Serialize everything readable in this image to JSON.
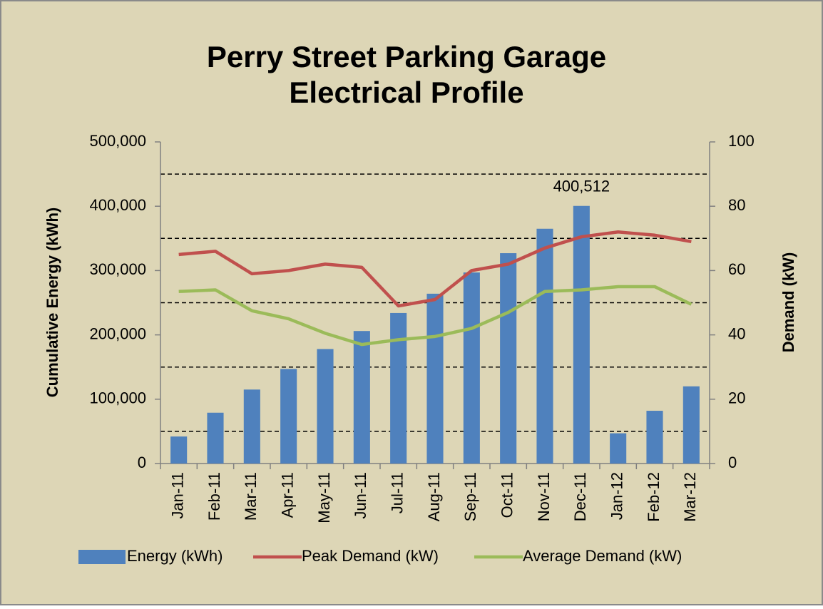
{
  "chart_data": {
    "type": "bar_line",
    "title": [
      "Perry Street Parking Garage",
      "Electrical Profile"
    ],
    "y_label": "Cumulative Energy (kWh)",
    "y2_label": "Demand (kW)",
    "categories": [
      "Jan-11",
      "Feb-11",
      "Mar-11",
      "Apr-11",
      "May-11",
      "Jun-11",
      "Jul-11",
      "Aug-11",
      "Sep-11",
      "Oct-11",
      "Nov-11",
      "Dec-11",
      "Jan-12",
      "Feb-12",
      "Mar-12"
    ],
    "series": [
      {
        "name": "Energy (kWh)",
        "type": "bar",
        "color": "#4f81bd",
        "values": [
          42000,
          79000,
          115000,
          147000,
          178000,
          206000,
          234000,
          264000,
          297000,
          327000,
          365000,
          400512,
          47000,
          82000,
          120000
        ],
        "value_labels": [
          null,
          null,
          null,
          null,
          null,
          null,
          null,
          null,
          null,
          null,
          null,
          "400,512",
          null,
          null,
          null
        ]
      },
      {
        "name": "Peak Demand (kW)",
        "type": "line",
        "axis": "y2",
        "color": "#c0504d",
        "values": [
          65,
          66,
          59,
          60,
          62,
          61,
          49,
          51,
          60,
          62,
          67,
          70.5,
          72,
          71,
          69
        ]
      },
      {
        "name": "Average Demand (kW)",
        "type": "line",
        "axis": "y2",
        "color": "#9bbb59",
        "values": [
          53.5,
          54,
          47.5,
          45,
          40.5,
          37,
          38.5,
          39.5,
          42,
          47,
          53.5,
          54,
          55,
          55,
          49.5
        ]
      }
    ],
    "ylim": [
      0,
      500000
    ],
    "yticks": [
      0,
      {
        "value": 100000,
        "label": "100,000"
      },
      {
        "value": 200000,
        "label": "200,000"
      },
      {
        "value": 300000,
        "label": "300,000"
      },
      {
        "value": 400000,
        "label": "400,000"
      },
      {
        "value": 500000,
        "label": "500,000"
      }
    ],
    "y2lim": [
      0,
      100
    ],
    "y2ticks": [
      0,
      20,
      40,
      60,
      80,
      100
    ],
    "ygrid": [
      50000,
      150000,
      250000,
      350000,
      450000
    ],
    "legend": "bottom"
  }
}
